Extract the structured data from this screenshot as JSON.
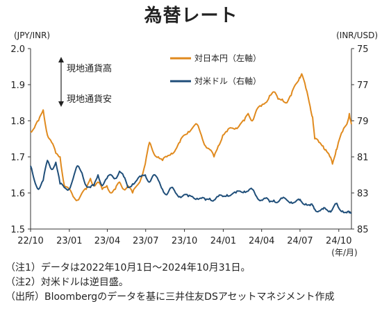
{
  "title": "為替レート",
  "chart_data": {
    "type": "line",
    "left_axis_label": "(JPY/INR)",
    "right_axis_label": "(INR/USD)",
    "left_ylim": [
      1.5,
      2.0
    ],
    "left_ticks": [
      "2.0",
      "1.9",
      "1.8",
      "1.7",
      "1.6",
      "1.5"
    ],
    "left_tick_values": [
      2.0,
      1.9,
      1.8,
      1.7,
      1.6,
      1.5
    ],
    "right_ylim": [
      75,
      85
    ],
    "right_reversed": true,
    "right_ticks": [
      "75",
      "77",
      "79",
      "81",
      "83",
      "85"
    ],
    "right_tick_values": [
      75,
      77,
      79,
      81,
      83,
      85
    ],
    "x_ticks": [
      "22/10",
      "23/01",
      "23/04",
      "23/07",
      "23/10",
      "24/01",
      "24/04",
      "24/07",
      "24/10"
    ],
    "x_unit": "(年/月)",
    "x_range": [
      "2022-10-01",
      "2024-10-31"
    ],
    "legend": [
      {
        "name": "対日本円（左軸）",
        "color": "#E08A1E"
      },
      {
        "name": "対米ドル（右軸）",
        "color": "#1F4E79"
      }
    ],
    "annotation_up": "現地通貨高",
    "annotation_down": "現地通貨安",
    "series": [
      {
        "name": "対日本円（左軸）",
        "axis": "left",
        "color": "#E08A1E",
        "points": [
          [
            "2022-10-01",
            1.77
          ],
          [
            "2022-10-10",
            1.78
          ],
          [
            "2022-10-20",
            1.8
          ],
          [
            "2022-10-31",
            1.83
          ],
          [
            "2022-11-10",
            1.76
          ],
          [
            "2022-11-20",
            1.74
          ],
          [
            "2022-11-30",
            1.71
          ],
          [
            "2022-12-10",
            1.7
          ],
          [
            "2022-12-20",
            1.62
          ],
          [
            "2022-12-31",
            1.61
          ],
          [
            "2023-01-10",
            1.59
          ],
          [
            "2023-01-20",
            1.58
          ],
          [
            "2023-01-31",
            1.6
          ],
          [
            "2023-02-10",
            1.61
          ],
          [
            "2023-02-20",
            1.64
          ],
          [
            "2023-02-28",
            1.62
          ],
          [
            "2023-03-10",
            1.63
          ],
          [
            "2023-03-20",
            1.61
          ],
          [
            "2023-03-31",
            1.62
          ],
          [
            "2023-04-10",
            1.6
          ],
          [
            "2023-04-20",
            1.61
          ],
          [
            "2023-04-30",
            1.63
          ],
          [
            "2023-05-10",
            1.61
          ],
          [
            "2023-05-20",
            1.62
          ],
          [
            "2023-05-31",
            1.6
          ],
          [
            "2023-06-10",
            1.62
          ],
          [
            "2023-06-20",
            1.64
          ],
          [
            "2023-06-30",
            1.68
          ],
          [
            "2023-07-10",
            1.74
          ],
          [
            "2023-07-20",
            1.71
          ],
          [
            "2023-07-31",
            1.7
          ],
          [
            "2023-08-10",
            1.69
          ],
          [
            "2023-08-20",
            1.7
          ],
          [
            "2023-08-31",
            1.71
          ],
          [
            "2023-09-10",
            1.72
          ],
          [
            "2023-09-20",
            1.74
          ],
          [
            "2023-09-30",
            1.76
          ],
          [
            "2023-10-10",
            1.77
          ],
          [
            "2023-10-20",
            1.78
          ],
          [
            "2023-10-31",
            1.79
          ],
          [
            "2023-11-10",
            1.76
          ],
          [
            "2023-11-20",
            1.73
          ],
          [
            "2023-11-30",
            1.72
          ],
          [
            "2023-12-10",
            1.7
          ],
          [
            "2023-12-20",
            1.73
          ],
          [
            "2023-12-31",
            1.76
          ],
          [
            "2024-01-10",
            1.77
          ],
          [
            "2024-01-20",
            1.78
          ],
          [
            "2024-01-31",
            1.78
          ],
          [
            "2024-02-10",
            1.79
          ],
          [
            "2024-02-20",
            1.8
          ],
          [
            "2024-02-29",
            1.82
          ],
          [
            "2024-03-10",
            1.8
          ],
          [
            "2024-03-20",
            1.83
          ],
          [
            "2024-03-31",
            1.84
          ],
          [
            "2024-04-10",
            1.85
          ],
          [
            "2024-04-20",
            1.87
          ],
          [
            "2024-04-30",
            1.88
          ],
          [
            "2024-05-10",
            1.86
          ],
          [
            "2024-05-20",
            1.86
          ],
          [
            "2024-05-31",
            1.85
          ],
          [
            "2024-06-10",
            1.87
          ],
          [
            "2024-06-20",
            1.9
          ],
          [
            "2024-06-30",
            1.92
          ],
          [
            "2024-07-05",
            1.93
          ],
          [
            "2024-07-15",
            1.89
          ],
          [
            "2024-07-25",
            1.84
          ],
          [
            "2024-07-31",
            1.81
          ],
          [
            "2024-08-05",
            1.75
          ],
          [
            "2024-08-15",
            1.74
          ],
          [
            "2024-08-25",
            1.73
          ],
          [
            "2024-08-31",
            1.72
          ],
          [
            "2024-09-10",
            1.7
          ],
          [
            "2024-09-16",
            1.68
          ],
          [
            "2024-09-25",
            1.72
          ],
          [
            "2024-09-30",
            1.74
          ],
          [
            "2024-10-10",
            1.77
          ],
          [
            "2024-10-20",
            1.79
          ],
          [
            "2024-10-26",
            1.82
          ],
          [
            "2024-10-31",
            1.79
          ]
        ]
      },
      {
        "name": "対米ドル（右軸）",
        "axis": "right",
        "color": "#1F4E79",
        "points": [
          [
            "2022-10-01",
            81.5
          ],
          [
            "2022-10-10",
            82.3
          ],
          [
            "2022-10-20",
            82.8
          ],
          [
            "2022-10-31",
            82.3
          ],
          [
            "2022-11-10",
            81.2
          ],
          [
            "2022-11-20",
            81.7
          ],
          [
            "2022-11-30",
            81.3
          ],
          [
            "2022-12-10",
            82.5
          ],
          [
            "2022-12-20",
            82.7
          ],
          [
            "2022-12-31",
            82.8
          ],
          [
            "2023-01-10",
            82.2
          ],
          [
            "2023-01-20",
            81.5
          ],
          [
            "2023-01-31",
            81.9
          ],
          [
            "2023-02-10",
            82.6
          ],
          [
            "2023-02-20",
            82.7
          ],
          [
            "2023-02-28",
            82.6
          ],
          [
            "2023-03-10",
            82.0
          ],
          [
            "2023-03-20",
            82.6
          ],
          [
            "2023-03-31",
            82.2
          ],
          [
            "2023-04-10",
            82.0
          ],
          [
            "2023-04-20",
            82.2
          ],
          [
            "2023-04-30",
            81.8
          ],
          [
            "2023-05-10",
            82.1
          ],
          [
            "2023-05-20",
            82.7
          ],
          [
            "2023-05-31",
            82.5
          ],
          [
            "2023-06-10",
            82.3
          ],
          [
            "2023-06-20",
            82.1
          ],
          [
            "2023-06-30",
            82.0
          ],
          [
            "2023-07-10",
            82.4
          ],
          [
            "2023-07-20",
            82.0
          ],
          [
            "2023-07-31",
            82.3
          ],
          [
            "2023-08-10",
            82.8
          ],
          [
            "2023-08-20",
            83.1
          ],
          [
            "2023-08-31",
            82.7
          ],
          [
            "2023-09-10",
            83.0
          ],
          [
            "2023-09-20",
            83.2
          ],
          [
            "2023-09-30",
            83.1
          ],
          [
            "2023-10-10",
            83.2
          ],
          [
            "2023-10-20",
            83.2
          ],
          [
            "2023-10-31",
            83.3
          ],
          [
            "2023-11-10",
            83.3
          ],
          [
            "2023-11-20",
            83.4
          ],
          [
            "2023-11-30",
            83.3
          ],
          [
            "2023-12-10",
            83.4
          ],
          [
            "2023-12-20",
            83.2
          ],
          [
            "2023-12-31",
            83.2
          ],
          [
            "2024-01-10",
            83.1
          ],
          [
            "2024-01-20",
            83.1
          ],
          [
            "2024-01-31",
            83.0
          ],
          [
            "2024-02-10",
            82.9
          ],
          [
            "2024-02-20",
            82.9
          ],
          [
            "2024-02-29",
            82.9
          ],
          [
            "2024-03-10",
            82.8
          ],
          [
            "2024-03-20",
            83.2
          ],
          [
            "2024-03-31",
            83.4
          ],
          [
            "2024-04-10",
            83.3
          ],
          [
            "2024-04-20",
            83.5
          ],
          [
            "2024-04-30",
            83.4
          ],
          [
            "2024-05-10",
            83.5
          ],
          [
            "2024-05-20",
            83.3
          ],
          [
            "2024-05-31",
            83.4
          ],
          [
            "2024-06-10",
            83.5
          ],
          [
            "2024-06-20",
            83.5
          ],
          [
            "2024-06-30",
            83.4
          ],
          [
            "2024-07-05",
            83.5
          ],
          [
            "2024-07-15",
            83.6
          ],
          [
            "2024-07-25",
            83.7
          ],
          [
            "2024-07-31",
            83.7
          ],
          [
            "2024-08-05",
            83.9
          ],
          [
            "2024-08-15",
            84.0
          ],
          [
            "2024-08-25",
            83.9
          ],
          [
            "2024-08-31",
            83.9
          ],
          [
            "2024-09-10",
            84.0
          ],
          [
            "2024-09-16",
            83.9
          ],
          [
            "2024-09-25",
            83.6
          ],
          [
            "2024-09-30",
            83.8
          ],
          [
            "2024-10-10",
            84.0
          ],
          [
            "2024-10-20",
            84.1
          ],
          [
            "2024-10-26",
            84.1
          ],
          [
            "2024-10-31",
            84.1
          ]
        ]
      }
    ]
  },
  "notes": [
    "（注1）データは2022年10月1日～2024年10月31日。",
    "（注2）対米ドルは逆目盛。",
    "（出所）Bloombergのデータを基に三井住友DSアセットマネジメント作成"
  ]
}
